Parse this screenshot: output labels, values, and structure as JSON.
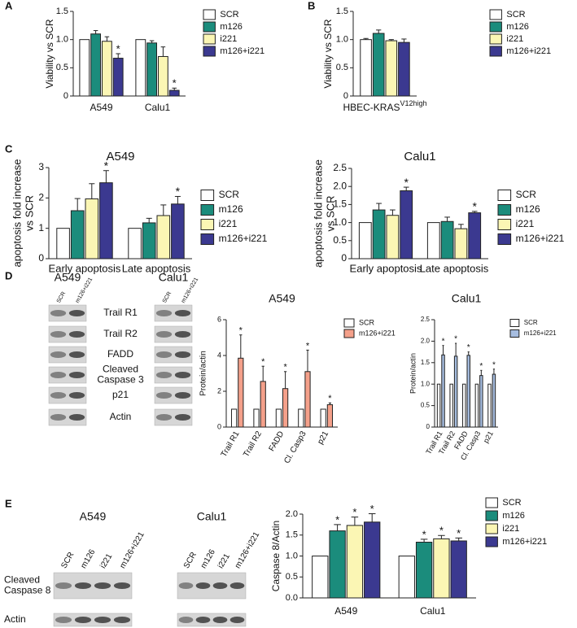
{
  "panels": [
    "A",
    "B",
    "C",
    "D",
    "E"
  ],
  "chart_data": [
    {
      "type": "bar",
      "ylabel": [
        "Viability vs SCR"
      ],
      "categories": [
        "A549",
        "Calu1"
      ],
      "ylim": [
        0,
        1.5
      ],
      "yticks": [
        0,
        0.5,
        {
          "value": 1,
          "label": "1.0"
        },
        1.5
      ],
      "series": [
        {
          "name": "SCR",
          "color": "#ffffff",
          "values": [
            1.0,
            1.0
          ]
        },
        {
          "name": "m126",
          "color": "#1b8c7c",
          "values": [
            1.1,
            0.94
          ],
          "errors": [
            0.06,
            0.04
          ]
        },
        {
          "name": "i221",
          "color": "#fbf6b4",
          "values": [
            0.97,
            0.7
          ],
          "errors": [
            0.08,
            0.17
          ]
        },
        {
          "name": "m126+i221",
          "color": "#3b3990",
          "values": [
            0.67,
            0.1
          ],
          "errors": [
            0.08,
            0.04
          ],
          "annotations": [
            "*",
            "*"
          ]
        }
      ]
    },
    {
      "type": "bar",
      "ylabel": [
        "Viability vs SCR"
      ],
      "categories": [
        "HBEC-KRAS"
      ],
      "category_superscripts": [
        "V12high"
      ],
      "ylim": [
        0,
        1.5
      ],
      "yticks": [
        0,
        0.5,
        {
          "value": 1,
          "label": "1.0"
        },
        1.5
      ],
      "series": [
        {
          "name": "SCR",
          "color": "#ffffff",
          "values": [
            1.0
          ],
          "errors": [
            0.02
          ]
        },
        {
          "name": "m126",
          "color": "#1b8c7c",
          "values": [
            1.11
          ],
          "errors": [
            0.06
          ]
        },
        {
          "name": "i221",
          "color": "#fbf6b4",
          "values": [
            0.98
          ],
          "errors": [
            0.02
          ]
        },
        {
          "name": "m126+i221",
          "color": "#3b3990",
          "values": [
            0.95
          ],
          "errors": [
            0.06
          ]
        }
      ]
    },
    {
      "type": "bar",
      "title": "A549",
      "ylabel": [
        "apoptosis fold increase",
        "vs SCR"
      ],
      "categories": [
        "Early apoptosis",
        "Late apoptosis"
      ],
      "ylim": [
        0,
        3
      ],
      "yticks": [
        0,
        1,
        2,
        3
      ],
      "series": [
        {
          "name": "SCR",
          "color": "#ffffff",
          "values": [
            1.0,
            1.0
          ]
        },
        {
          "name": "m126",
          "color": "#1b8c7c",
          "values": [
            1.58,
            1.18
          ],
          "errors": [
            0.4,
            0.15
          ]
        },
        {
          "name": "i221",
          "color": "#fbf6b4",
          "values": [
            1.97,
            1.42
          ],
          "errors": [
            0.5,
            0.35
          ]
        },
        {
          "name": "m126+i221",
          "color": "#3b3990",
          "values": [
            2.5,
            1.8
          ],
          "errors": [
            0.4,
            0.25
          ],
          "annotations": [
            "*",
            "*"
          ]
        }
      ]
    },
    {
      "type": "bar",
      "title": "Calu1",
      "ylabel": [
        "apoptosis fold increase",
        "vs SCR"
      ],
      "categories": [
        "Early apoptosis",
        "Late apoptosis"
      ],
      "ylim": [
        0,
        2.5
      ],
      "yticks": [
        0,
        0.5,
        {
          "value": 1,
          "label": "1.0"
        },
        1.5,
        {
          "value": 2,
          "label": "2.0"
        },
        2.5
      ],
      "series": [
        {
          "name": "SCR",
          "color": "#ffffff",
          "values": [
            1.0,
            1.0
          ]
        },
        {
          "name": "m126",
          "color": "#1b8c7c",
          "values": [
            1.35,
            1.03
          ],
          "errors": [
            0.18,
            0.12
          ]
        },
        {
          "name": "i221",
          "color": "#fbf6b4",
          "values": [
            1.2,
            0.83
          ],
          "errors": [
            0.15,
            0.12
          ]
        },
        {
          "name": "m126+i221",
          "color": "#3b3990",
          "values": [
            1.88,
            1.27
          ],
          "errors": [
            0.1,
            0.04
          ],
          "annotations": [
            "*",
            "*"
          ]
        }
      ]
    },
    {
      "type": "bar",
      "title": "A549",
      "ylabel": [
        "Protein/actin"
      ],
      "categories": [
        "Trail R1",
        "Trail R2",
        "FADD",
        "Cl. Casp3",
        "p21"
      ],
      "ylim": [
        0,
        6
      ],
      "yticks": [
        0,
        2,
        4,
        6
      ],
      "series": [
        {
          "name": "SCR",
          "color": "#ffffff",
          "values": [
            1,
            1,
            1,
            1,
            1
          ]
        },
        {
          "name": "m126+i221",
          "color": "#f4a08a",
          "values": [
            3.85,
            2.55,
            2.15,
            3.1,
            1.25
          ],
          "errors": [
            1.3,
            0.85,
            0.95,
            1.2,
            0.1
          ],
          "annotations": [
            "*",
            "*",
            "*",
            "*",
            "*"
          ]
        }
      ]
    },
    {
      "type": "bar",
      "title": "Calu1",
      "ylabel": [
        "Protein/actin"
      ],
      "categories": [
        "Trail R1",
        "Trail R2",
        "FADD",
        "Cl. Casp3",
        "p21"
      ],
      "ylim": [
        0,
        2.5
      ],
      "yticks": [
        0,
        0.5,
        {
          "value": 1,
          "label": "1.0"
        },
        1.5,
        {
          "value": 2,
          "label": "2.0"
        },
        2.5
      ],
      "series": [
        {
          "name": "SCR",
          "color": "#ffffff",
          "values": [
            1,
            1,
            1,
            1,
            1
          ]
        },
        {
          "name": "m126+i221",
          "color": "#a6bde0",
          "values": [
            1.68,
            1.65,
            1.67,
            1.2,
            1.23
          ],
          "errors": [
            0.22,
            0.3,
            0.08,
            0.12,
            0.12
          ],
          "annotations": [
            "*",
            "*",
            "*",
            "*",
            "*"
          ]
        }
      ]
    },
    {
      "type": "bar",
      "ylabel": [
        "Caspase 8/Actin"
      ],
      "categories": [
        "A549",
        "Calu1"
      ],
      "ylim": [
        0,
        2
      ],
      "yticks": [
        {
          "value": 0,
          "label": "0.0"
        },
        0.5,
        {
          "value": 1,
          "label": "1.0"
        },
        1.5,
        {
          "value": 2,
          "label": "2.0"
        }
      ],
      "series": [
        {
          "name": "SCR",
          "color": "#ffffff",
          "values": [
            1.0,
            1.0
          ]
        },
        {
          "name": "m126",
          "color": "#1b8c7c",
          "values": [
            1.6,
            1.33
          ],
          "errors": [
            0.15,
            0.07
          ],
          "annotations": [
            "*",
            "*"
          ]
        },
        {
          "name": "i221",
          "color": "#fbf6b4",
          "values": [
            1.73,
            1.41
          ],
          "errors": [
            0.2,
            0.08
          ],
          "annotations": [
            "*",
            "*"
          ]
        },
        {
          "name": "m126+i221",
          "color": "#3b3990",
          "values": [
            1.81,
            1.36
          ],
          "errors": [
            0.2,
            0.07
          ],
          "annotations": [
            "*",
            "*"
          ]
        }
      ]
    }
  ],
  "blot_panels": [
    {
      "row_labels": [
        [
          "Trail R1"
        ],
        [
          "Trail R2"
        ],
        [
          "FADD"
        ],
        [
          "Cleaved",
          "Caspase 3"
        ],
        [
          "p21"
        ],
        [
          "Actin"
        ]
      ],
      "blots": [
        {
          "title": "A549",
          "lanes": [
            "SCR",
            "m126+i221"
          ]
        },
        {
          "title": "Calu1",
          "lanes": [
            "SCR",
            "m126+i221"
          ]
        }
      ]
    },
    {
      "row_labels": [
        [
          "Cleaved",
          "Caspase 8"
        ],
        [
          "Actin"
        ]
      ],
      "blots": [
        {
          "title": "A549",
          "lanes": [
            "SCR",
            "m126",
            "i221",
            "m126+i221"
          ]
        },
        {
          "title": "Calu1",
          "lanes": [
            "SCR",
            "m126",
            "i221",
            "m126+i221"
          ]
        }
      ]
    }
  ]
}
